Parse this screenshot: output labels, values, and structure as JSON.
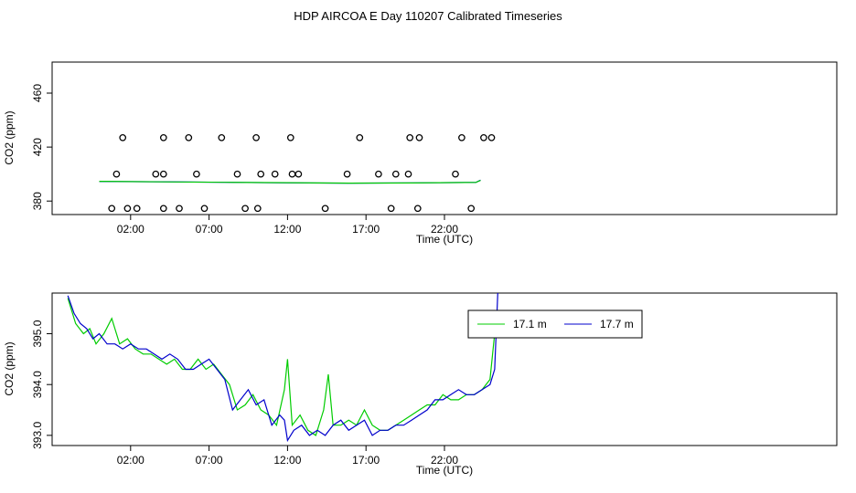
{
  "title": "HDP AIRCOA E  Day 110207  Calibrated Timeseries",
  "charts": [
    {
      "type": "line",
      "xlabel": "Time (UTC)",
      "ylabel": "CO2 (ppm)",
      "xlim": [
        -3,
        47
      ],
      "ylim": [
        370,
        483
      ],
      "xticks": [
        2,
        7,
        12,
        17,
        22
      ],
      "xtick_labels": [
        "02:00",
        "07:00",
        "12:00",
        "17:00",
        "22:00"
      ],
      "yticks": [
        380,
        420,
        460
      ],
      "ytick_labels": [
        "380",
        "420",
        "460"
      ],
      "series": [
        {
          "color": "#0000ff",
          "x": [
            0.0,
            4.0,
            8.0,
            12.0,
            16.0,
            20.0,
            24.0,
            24.3
          ],
          "y": [
            394.5,
            394.3,
            393.9,
            393.5,
            393.3,
            393.5,
            393.8,
            395.5
          ]
        },
        {
          "color": "#00cc00",
          "x": [
            0.0,
            4.0,
            8.0,
            12.0,
            16.0,
            20.0,
            24.0,
            24.3
          ],
          "y": [
            394.6,
            394.2,
            393.9,
            393.6,
            393.3,
            393.4,
            393.8,
            395.3
          ]
        }
      ],
      "points": {
        "x": [
          0.8,
          1.8,
          2.4,
          4.1,
          5.1,
          6.7,
          9.3,
          10.1,
          14.4,
          18.6,
          20.3,
          23.7,
          1.1,
          3.6,
          4.1,
          6.2,
          8.8,
          10.3,
          11.2,
          12.3,
          12.7,
          15.8,
          17.8,
          18.9,
          19.7,
          22.7,
          1.5,
          4.1,
          5.7,
          7.8,
          10.0,
          12.2,
          16.6,
          19.8,
          24.5,
          23.1,
          20.4,
          25.0
        ],
        "y": [
          374.5,
          374.5,
          374.5,
          374.5,
          374.5,
          374.5,
          374.5,
          374.5,
          374.5,
          374.5,
          374.5,
          374.5,
          400,
          400,
          400,
          400,
          400,
          400,
          400,
          400,
          400,
          400,
          400,
          400,
          400,
          400,
          427,
          427,
          427,
          427,
          427,
          427,
          427,
          427,
          427,
          427,
          427,
          427
        ]
      }
    },
    {
      "type": "line",
      "xlabel": "Time (UTC)",
      "ylabel": "CO2 (ppm)",
      "xlim": [
        -3,
        47
      ],
      "ylim": [
        392.8,
        395.8
      ],
      "xticks": [
        2,
        7,
        12,
        17,
        22
      ],
      "xtick_labels": [
        "02:00",
        "07:00",
        "12:00",
        "17:00",
        "22:00"
      ],
      "yticks": [
        393.0,
        394.0,
        395.0
      ],
      "ytick_labels": [
        "393.0",
        "394.0",
        "395.0"
      ],
      "legend": {
        "position": "top-right",
        "entries": [
          "17.1 m",
          "17.7 m"
        ]
      },
      "series": [
        {
          "name": "17.1 m",
          "color": "#00cc00",
          "x": [
            -2.0,
            -1.5,
            -1.0,
            -0.6,
            -0.2,
            0.3,
            0.8,
            1.3,
            1.8,
            2.3,
            2.8,
            3.3,
            3.8,
            4.3,
            4.8,
            5.3,
            5.8,
            6.3,
            6.8,
            7.3,
            7.8,
            8.3,
            8.8,
            9.3,
            9.8,
            10.3,
            10.8,
            11.3,
            11.8,
            12.0,
            12.3,
            12.8,
            13.3,
            13.8,
            14.3,
            14.6,
            14.9,
            15.4,
            15.9,
            16.4,
            16.9,
            17.4,
            17.9,
            18.4,
            18.9,
            19.4,
            19.9,
            20.4,
            20.9,
            21.4,
            21.9,
            22.4,
            22.9,
            23.4,
            23.9,
            24.4,
            24.9,
            25.3
          ],
          "y": [
            395.7,
            395.2,
            395.0,
            395.1,
            394.8,
            395.0,
            395.3,
            394.8,
            394.9,
            394.7,
            394.6,
            394.6,
            394.5,
            394.4,
            394.5,
            394.3,
            394.3,
            394.5,
            394.3,
            394.4,
            394.2,
            394.0,
            393.5,
            393.6,
            393.8,
            393.5,
            393.4,
            393.2,
            393.9,
            394.5,
            393.2,
            393.4,
            393.1,
            393.0,
            393.5,
            394.2,
            393.2,
            393.2,
            393.3,
            393.2,
            393.5,
            393.2,
            393.1,
            393.1,
            393.2,
            393.3,
            393.4,
            393.5,
            393.6,
            393.6,
            393.8,
            393.7,
            393.7,
            393.8,
            393.8,
            393.9,
            394.1,
            395.3
          ]
        },
        {
          "name": "17.7 m",
          "color": "#0000cc",
          "x": [
            -2.0,
            -1.6,
            -1.2,
            -0.8,
            -0.4,
            0.0,
            0.5,
            1.0,
            1.5,
            2.0,
            2.5,
            3.0,
            3.5,
            4.0,
            4.5,
            5.0,
            5.5,
            6.0,
            6.5,
            7.0,
            7.5,
            8.0,
            8.5,
            9.0,
            9.5,
            10.0,
            10.5,
            11.0,
            11.5,
            11.8,
            12.0,
            12.4,
            12.9,
            13.4,
            13.9,
            14.4,
            14.9,
            15.4,
            15.9,
            16.4,
            16.9,
            17.4,
            17.9,
            18.4,
            18.9,
            19.4,
            19.9,
            20.4,
            20.9,
            21.4,
            21.9,
            22.4,
            22.9,
            23.4,
            23.9,
            24.4,
            24.9,
            25.2,
            25.4
          ],
          "y": [
            395.75,
            395.4,
            395.2,
            395.1,
            394.9,
            395.0,
            394.8,
            394.8,
            394.7,
            394.8,
            394.7,
            394.7,
            394.6,
            394.5,
            394.6,
            394.5,
            394.3,
            394.3,
            394.4,
            394.5,
            394.3,
            394.1,
            393.5,
            393.7,
            393.9,
            393.6,
            393.7,
            393.2,
            393.4,
            393.3,
            392.9,
            393.1,
            393.2,
            393.0,
            393.1,
            393.0,
            393.2,
            393.3,
            393.1,
            393.2,
            393.3,
            393.0,
            393.1,
            393.1,
            393.2,
            393.2,
            393.3,
            393.4,
            393.5,
            393.7,
            393.7,
            393.8,
            393.9,
            393.8,
            393.8,
            393.9,
            394.0,
            394.3,
            395.8
          ]
        }
      ]
    }
  ]
}
